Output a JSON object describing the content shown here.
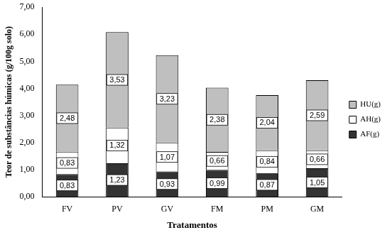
{
  "chart_data": {
    "type": "bar",
    "stacked": true,
    "data_labels": true,
    "grid": false,
    "legend": "right",
    "x_label": "Tratamentos",
    "y_label": "Teor de substâncias húmicas (g/100g solo)",
    "categories": [
      "FV",
      "PV",
      "GV",
      "FM",
      "PM",
      "GM"
    ],
    "ylim": [
      0,
      7
    ],
    "yticks": [
      {
        "value": 0,
        "label": "0,00"
      },
      {
        "value": 1,
        "label": "1,00"
      },
      {
        "value": 2,
        "label": "2,00"
      },
      {
        "value": 3,
        "label": "3,00"
      },
      {
        "value": 4,
        "label": "4,00"
      },
      {
        "value": 5,
        "label": "5,00"
      },
      {
        "value": 6,
        "label": "6,00"
      },
      {
        "value": 7,
        "label": "7,00"
      }
    ],
    "series": [
      {
        "name": "AF(g)",
        "color": "#333333",
        "values": [
          0.83,
          1.23,
          0.93,
          0.99,
          0.87,
          1.05
        ],
        "value_labels": [
          "0,83",
          "1,23",
          "0,93",
          "0,99",
          "0,87",
          "1,05"
        ]
      },
      {
        "name": "AH(g)",
        "color": "#ffffff",
        "values": [
          0.83,
          1.32,
          1.07,
          0.66,
          0.84,
          0.66
        ],
        "value_labels": [
          "0,83",
          "1,32",
          "1,07",
          "0,66",
          "0,84",
          "0,66"
        ]
      },
      {
        "name": "HU(g)",
        "color": "#bfbfbf",
        "values": [
          2.48,
          3.53,
          3.23,
          2.38,
          2.04,
          2.59
        ],
        "value_labels": [
          "2,48",
          "3,53",
          "3,23",
          "2,38",
          "2,04",
          "2,59"
        ]
      }
    ]
  }
}
